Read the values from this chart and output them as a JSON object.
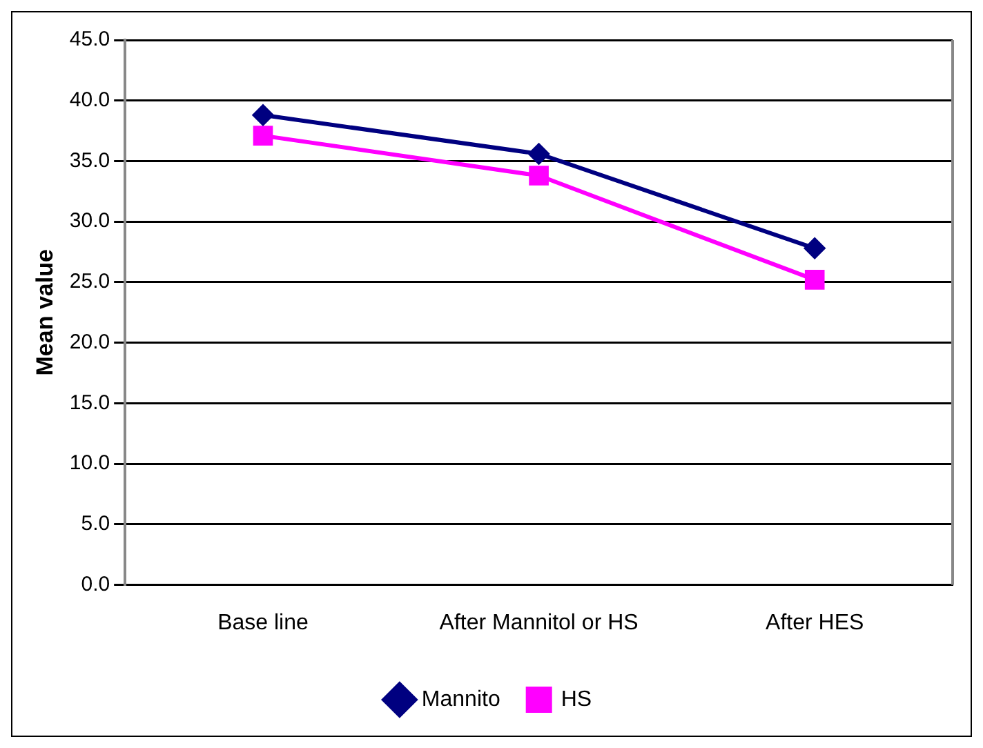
{
  "chart_data": {
    "type": "line",
    "ylabel": "Mean value",
    "categories": [
      "Base line",
      "After Mannitol or HS",
      "After HES"
    ],
    "series": [
      {
        "name": "Mannito",
        "color": "#000080",
        "values": [
          38.8,
          35.6,
          27.8
        ],
        "marker": "diamond"
      },
      {
        "name": "HS",
        "color": "#ff00ff",
        "values": [
          37.1,
          33.8,
          25.2
        ],
        "marker": "square"
      }
    ],
    "ylim": [
      0,
      45
    ],
    "yticks": [
      {
        "value": 0,
        "label": "0.0"
      },
      {
        "value": 5,
        "label": "5.0"
      },
      {
        "value": 10,
        "label": "10.0"
      },
      {
        "value": 15,
        "label": "15.0"
      },
      {
        "value": 20,
        "label": "20.0"
      },
      {
        "value": 25,
        "label": "25.0"
      },
      {
        "value": 30,
        "label": "30.0"
      },
      {
        "value": 35,
        "label": "35.0"
      },
      {
        "value": 40,
        "label": "40.0"
      },
      {
        "value": 45,
        "label": "45.0"
      }
    ],
    "grid": "y",
    "legend": "bottom",
    "line_style": "solid"
  }
}
